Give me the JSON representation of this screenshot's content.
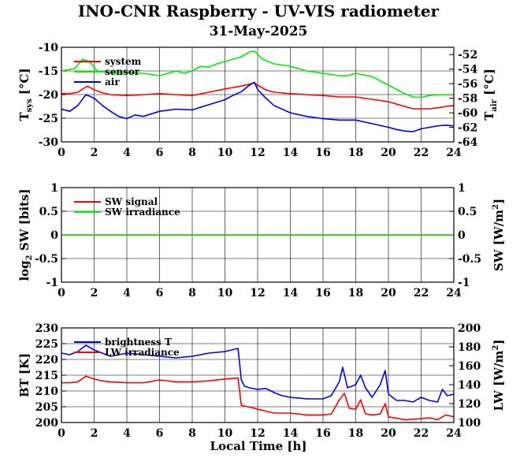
{
  "figure": {
    "title": "INO-CNR Raspberry - UV-VIS radiometer",
    "date": "31-May-2025",
    "xlabel": "Local Time [h]"
  },
  "chart_data": [
    {
      "type": "line",
      "ylabel_left": "T",
      "ylabel_left_sub": "sys",
      "ylabel_left_unit": " [°C]",
      "ylabel_right": "T",
      "ylabel_right_sub": "air",
      "ylabel_right_unit": " [°C]",
      "xlim": [
        0,
        24
      ],
      "ylim_left": [
        -30,
        -10
      ],
      "ylim_right": [
        -64,
        -51
      ],
      "x_ticks": [
        "0",
        "2",
        "4",
        "6",
        "8",
        "10",
        "12",
        "14",
        "16",
        "18",
        "20",
        "22",
        "24"
      ],
      "y_ticks_left": [
        "-30",
        "-25",
        "-20",
        "-15",
        "-10"
      ],
      "y_ticks_right": [
        "-64",
        "-62",
        "-60",
        "-58",
        "-56",
        "-54",
        "-52"
      ],
      "legend_position": "top-left",
      "series": [
        {
          "name": "system",
          "color": "#ff0000",
          "axis": "left",
          "x": [
            0,
            0.5,
            1,
            1.3,
            1.6,
            2,
            2.5,
            3,
            4,
            5,
            6,
            7,
            8,
            9,
            10,
            10.5,
            11,
            11.5,
            11.8,
            12,
            12.5,
            13,
            14,
            15,
            16,
            17,
            18,
            19,
            20,
            21,
            21.5,
            22,
            22.5,
            23,
            23.5,
            24
          ],
          "y": [
            -19.8,
            -19.8,
            -19.5,
            -18.8,
            -18.2,
            -19,
            -19.6,
            -20,
            -20.2,
            -20,
            -19.8,
            -20,
            -20.2,
            -19.5,
            -18.8,
            -18.5,
            -18.2,
            -17.8,
            -17.5,
            -18,
            -19,
            -19.5,
            -19.8,
            -20,
            -20.2,
            -20.5,
            -20.5,
            -21,
            -21.5,
            -22.5,
            -23,
            -23,
            -23,
            -22.8,
            -22.5,
            -22.3
          ]
        },
        {
          "name": "sensor",
          "color": "#00ee00",
          "axis": "left",
          "x": [
            0,
            0.8,
            1.3,
            1.7,
            2.2,
            3,
            4,
            5,
            6,
            7,
            7.5,
            8,
            8.5,
            9,
            9.5,
            10,
            10.5,
            11,
            11.5,
            11.8,
            12.3,
            13,
            14,
            15,
            16,
            17,
            17.5,
            18,
            19,
            20,
            21,
            21.5,
            22,
            22.5,
            23,
            24
          ],
          "y": [
            -15,
            -14.5,
            -12.5,
            -13,
            -15,
            -15.5,
            -15.3,
            -15.5,
            -16,
            -15,
            -15.5,
            -15,
            -14,
            -14.2,
            -13.5,
            -13,
            -12.5,
            -12,
            -11,
            -10.8,
            -12.5,
            -13.5,
            -14,
            -15,
            -15.5,
            -16,
            -16,
            -15.5,
            -16.2,
            -18,
            -19.8,
            -20.5,
            -20.6,
            -20.2,
            -20,
            -20
          ]
        },
        {
          "name": "air",
          "color": "#0000ee",
          "axis": "right",
          "x": [
            0,
            0.5,
            1,
            1.5,
            2,
            2.5,
            3,
            3.5,
            4,
            4.5,
            5,
            6,
            7,
            8,
            9,
            10,
            10.5,
            11,
            11.5,
            11.8,
            12,
            12.5,
            13,
            14,
            15,
            16,
            17,
            18,
            19,
            20,
            20.5,
            21,
            21.5,
            22,
            22.5,
            23,
            23.5,
            24
          ],
          "y": [
            -59.5,
            -59.8,
            -59,
            -57.5,
            -58,
            -59,
            -59.8,
            -60.5,
            -60.8,
            -60.3,
            -60.5,
            -59.8,
            -59.5,
            -59.6,
            -58.9,
            -58.2,
            -57.6,
            -57.1,
            -56.2,
            -55.8,
            -56.8,
            -58,
            -59,
            -60,
            -60.5,
            -60.8,
            -61,
            -61,
            -61.5,
            -62,
            -62.3,
            -62.5,
            -62.6,
            -62.2,
            -62,
            -61.8,
            -61.7,
            -61.8
          ]
        }
      ]
    },
    {
      "type": "line",
      "ylabel_left": "log",
      "ylabel_left_sub": "2",
      "ylabel_left_unit": " SW [bits]",
      "ylabel_right": "SW [W/m",
      "ylabel_right_sup": "2",
      "ylabel_right_unit": "]",
      "xlim": [
        0,
        24
      ],
      "ylim_left": [
        -1,
        1
      ],
      "ylim_right": [
        -1,
        1
      ],
      "x_ticks": [
        "0",
        "2",
        "4",
        "6",
        "8",
        "10",
        "12",
        "14",
        "16",
        "18",
        "20",
        "22",
        "24"
      ],
      "y_ticks_left": [
        "-1",
        "-0.5",
        "0",
        "0.5",
        "1"
      ],
      "y_ticks_right": [
        "-1",
        "-0.5",
        "0",
        "0.5",
        "1"
      ],
      "legend_position": "top-left",
      "series": [
        {
          "name": "SW signal",
          "color": "#ff0000",
          "axis": "left",
          "x": [
            0,
            24
          ],
          "y": [
            0,
            0
          ]
        },
        {
          "name": "SW irradiance",
          "color": "#00ee00",
          "axis": "right",
          "x": [
            0,
            24
          ],
          "y": [
            0,
            0
          ]
        }
      ]
    },
    {
      "type": "line",
      "ylabel_left": "BT [K]",
      "ylabel_right": "LW [W/m",
      "ylabel_right_sup": "2",
      "ylabel_right_unit": "]",
      "xlim": [
        0,
        24
      ],
      "ylim_left": [
        200,
        230
      ],
      "ylim_right": [
        100,
        200
      ],
      "x_ticks": [
        "0",
        "2",
        "4",
        "6",
        "8",
        "10",
        "12",
        "14",
        "16",
        "18",
        "20",
        "22",
        "24"
      ],
      "y_ticks_left": [
        "200",
        "205",
        "210",
        "215",
        "220",
        "225",
        "230"
      ],
      "y_ticks_right": [
        "100",
        "120",
        "140",
        "160",
        "180",
        "200"
      ],
      "legend_position": "top-left",
      "series": [
        {
          "name": "brightness T",
          "color": "#0000ee",
          "axis": "left",
          "x": [
            0,
            0.5,
            1,
            1.5,
            2,
            2.5,
            3,
            4,
            5,
            6,
            7,
            8,
            9,
            10,
            10.8,
            11,
            11.2,
            11.5,
            12,
            12.5,
            13,
            13.5,
            14,
            15,
            16,
            16.5,
            17,
            17.2,
            17.5,
            18,
            18.3,
            18.6,
            19,
            19.5,
            19.8,
            20,
            20.5,
            21,
            21.5,
            22,
            22.5,
            23,
            23.3,
            23.6,
            24
          ],
          "y": [
            222,
            221.5,
            222.5,
            224.5,
            223,
            222,
            221,
            222,
            221.5,
            221,
            220.5,
            221,
            222,
            222.5,
            223.5,
            213.5,
            211.5,
            211,
            210.5,
            210.8,
            209.5,
            208.5,
            208,
            207.5,
            207.5,
            208.5,
            213,
            217.5,
            211,
            212,
            215,
            211,
            208,
            212,
            216.5,
            209,
            207,
            207,
            206.5,
            208,
            207,
            206.5,
            210.5,
            208.5,
            209
          ]
        },
        {
          "name": "LW irradiance",
          "color": "#ff0000",
          "axis": "right",
          "x": [
            0,
            0.5,
            1,
            1.5,
            2,
            2.5,
            3,
            4,
            5,
            6,
            7,
            8,
            9,
            10,
            10.8,
            11,
            11.3,
            11.6,
            12,
            13,
            14,
            15,
            16,
            16.5,
            17,
            17.3,
            17.6,
            18,
            18.3,
            18.6,
            19,
            19.5,
            19.8,
            20,
            21,
            22,
            22.5,
            23,
            23.5,
            24
          ],
          "y": [
            142,
            142,
            143,
            149,
            146,
            144,
            143,
            142,
            142,
            145,
            143,
            143,
            144,
            146,
            147,
            118,
            117,
            116,
            114,
            110,
            110,
            108,
            108,
            109,
            124,
            131,
            115,
            114,
            124,
            109,
            108,
            109,
            120,
            106,
            103,
            104,
            105,
            103,
            108,
            106
          ]
        }
      ]
    }
  ]
}
